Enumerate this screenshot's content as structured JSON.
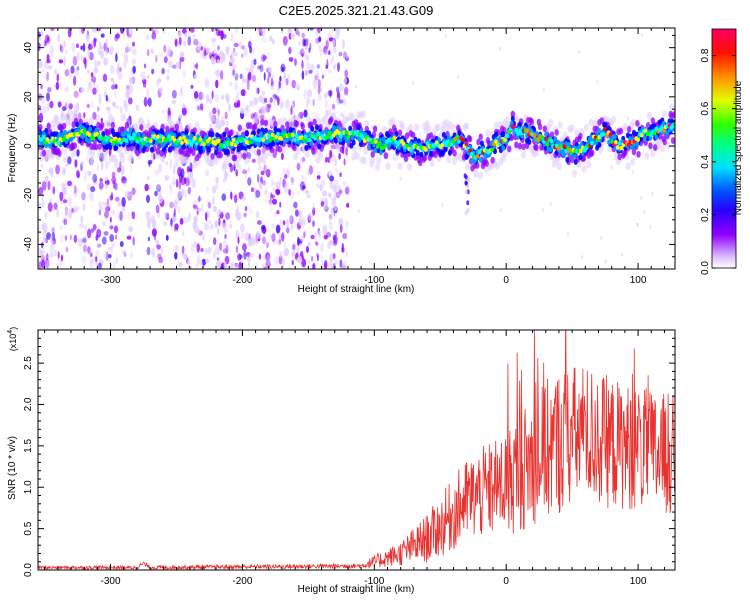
{
  "title": "C2E5.2025.321.21.43.G09",
  "colors": {
    "snr_line": "#e8322f",
    "axis": "#000000",
    "background": "#ffffff",
    "colormap": [
      "#e0ccff",
      "#8f00ff",
      "#3a00ff",
      "#0000ff",
      "#00a0ff",
      "#00ffff",
      "#00ff00",
      "#ffff00",
      "#ff8c00",
      "#ff0000",
      "#ff0066"
    ]
  },
  "chart_data": [
    {
      "type": "heatmap",
      "name": "spectrogram",
      "xlabel": "Height of straight line (km)",
      "ylabel": "Frequency (Hz)",
      "xlim": [
        -355,
        128
      ],
      "ylim": [
        -50,
        48
      ],
      "xticks": [
        -300,
        -200,
        -100,
        0,
        100
      ],
      "xtick_labels": [
        "-300",
        "-200",
        "-100",
        "0",
        "100"
      ],
      "yticks": [
        -40,
        -20,
        0,
        20,
        40
      ],
      "ytick_labels": [
        "-40",
        "-20",
        "0",
        "20",
        "40"
      ],
      "colorbar": {
        "label": "Normalized spectral amplitude",
        "range": [
          0.0,
          0.9
        ],
        "ticks": [
          0.0,
          0.2,
          0.4,
          0.6,
          0.8
        ],
        "tick_labels": [
          "0.0",
          "0.2",
          "0.4",
          "0.6",
          "0.8"
        ]
      },
      "ridge": {
        "x": [
          -355,
          -340,
          -325,
          -310,
          -295,
          -285,
          -275,
          -265,
          -210,
          -190,
          -170,
          -150,
          -130,
          -110,
          -95,
          -85,
          -70,
          -55,
          -45,
          -35,
          -25,
          -15,
          -5,
          0,
          4,
          8,
          15,
          25,
          35,
          45,
          55,
          65,
          75,
          85,
          95,
          105,
          115,
          128
        ],
        "y": [
          3,
          2,
          6,
          4,
          2,
          4,
          2,
          3,
          1,
          3,
          4,
          3,
          5,
          4,
          0,
          2,
          -1,
          0,
          1,
          3,
          -4,
          -2,
          2,
          2,
          8,
          5,
          6,
          3,
          1,
          -1,
          -3,
          2,
          6,
          0,
          1,
          5,
          6,
          8
        ]
      },
      "noise_region_x": [
        -355,
        -120
      ]
    },
    {
      "type": "line",
      "name": "snr",
      "xlabel": "Height of straight line (km)",
      "ylabel": "SNR (10 * v/v)",
      "y_multiplier_label": "(x10",
      "y_multiplier_exp": "4",
      "y_multiplier_close": ")",
      "xlim": [
        -355,
        128
      ],
      "ylim": [
        0,
        2.9
      ],
      "xticks": [
        -300,
        -200,
        -100,
        0,
        100
      ],
      "xtick_labels": [
        "-300",
        "-200",
        "-100",
        "0",
        "100"
      ],
      "yticks": [
        0,
        0.5,
        1.0,
        1.5,
        2.0,
        2.5
      ],
      "ytick_labels": [
        "0.0",
        "0.5",
        "1.0",
        "1.5",
        "2.0",
        "2.5"
      ],
      "trend": {
        "x": [
          -355,
          -280,
          -275,
          -270,
          -110,
          -100,
          -80,
          -60,
          -45,
          -30,
          -15,
          0,
          15,
          30,
          45,
          60,
          75,
          90,
          105,
          115,
          128
        ],
        "y": [
          0.03,
          0.03,
          0.08,
          0.03,
          0.05,
          0.1,
          0.2,
          0.38,
          0.6,
          0.85,
          0.95,
          1.05,
          1.25,
          1.45,
          1.6,
          1.65,
          1.55,
          1.5,
          1.45,
          1.4,
          1.38
        ]
      },
      "spread": {
        "x": [
          -355,
          -110,
          -100,
          -80,
          -60,
          -40,
          -20,
          0,
          20,
          40,
          60,
          80,
          100,
          128
        ],
        "y": [
          0.02,
          0.03,
          0.08,
          0.15,
          0.3,
          0.45,
          0.55,
          0.65,
          0.8,
          0.9,
          0.85,
          0.8,
          0.75,
          0.75
        ]
      }
    }
  ]
}
